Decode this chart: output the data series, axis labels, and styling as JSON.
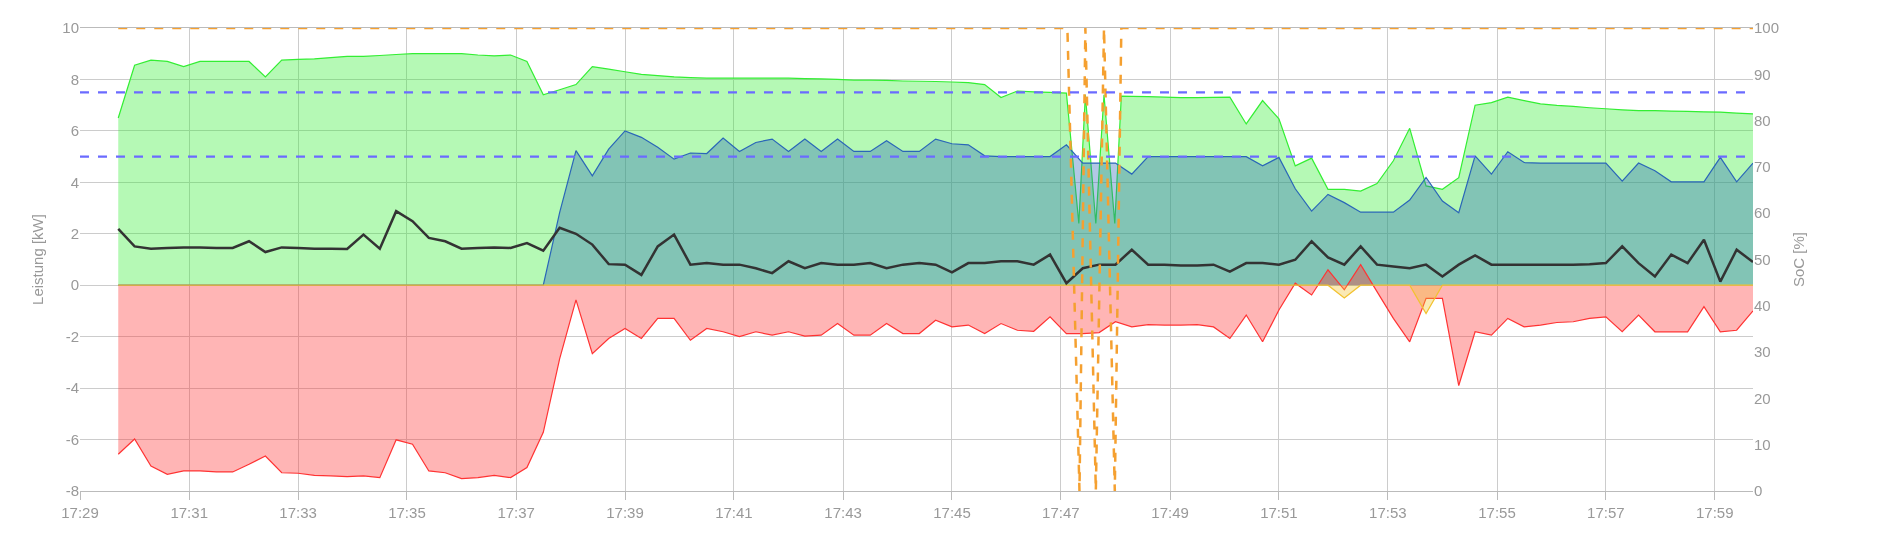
{
  "chart_data": {
    "type": "area",
    "ylabel": "Leistung [kW]",
    "y2label": "SoC [%]",
    "x": [
      17.495,
      17.5,
      17.505,
      17.51,
      17.515,
      17.52,
      17.525,
      17.53,
      17.535,
      17.54,
      17.545,
      17.55,
      17.555,
      17.56,
      17.565,
      17.57,
      17.575,
      17.58,
      17.585,
      17.59,
      17.595,
      17.6,
      17.605,
      17.61,
      17.615,
      17.62,
      17.625,
      17.63,
      17.635,
      17.64,
      17.645,
      17.65,
      17.655,
      17.66,
      17.665,
      17.67,
      17.675,
      17.68,
      17.685,
      17.69,
      17.695,
      17.7,
      17.705,
      17.71,
      17.715,
      17.72,
      17.725,
      17.73,
      17.735,
      17.74,
      17.745,
      17.75,
      17.755,
      17.76,
      17.765,
      17.77,
      17.775,
      17.78,
      17.785,
      17.79,
      17.795,
      17.8,
      17.805,
      17.81,
      17.815,
      17.82,
      17.825,
      17.83,
      17.835,
      17.84,
      17.845,
      17.85,
      17.855,
      17.86,
      17.865,
      17.87,
      17.875,
      17.88,
      17.885,
      17.89,
      17.895,
      17.9,
      17.905,
      17.91,
      17.915,
      17.92,
      17.925,
      17.93,
      17.935,
      17.94,
      17.945,
      17.95,
      17.955,
      17.96,
      17.965,
      17.97,
      17.975,
      17.98,
      17.985,
      17.99,
      17.995
    ],
    "series": [
      {
        "color": "#33ee33",
        "x": [
          17.495,
          17.5,
          17.505,
          17.51,
          17.515,
          17.52,
          17.525,
          17.53,
          17.535,
          17.54,
          17.545,
          17.55,
          17.555,
          17.56,
          17.565,
          17.57,
          17.575,
          17.58,
          17.585,
          17.59,
          17.595,
          17.6,
          17.605,
          17.61,
          17.615,
          17.62,
          17.625,
          17.63,
          17.635,
          17.64,
          17.645,
          17.65,
          17.655,
          17.66,
          17.665,
          17.67,
          17.675,
          17.68,
          17.685,
          17.69,
          17.695,
          17.7,
          17.705,
          17.71,
          17.715,
          17.72,
          17.725,
          17.73,
          17.735,
          17.74,
          17.745,
          17.75,
          17.755,
          17.76,
          17.765,
          17.77,
          17.775,
          17.78,
          17.785,
          17.7888,
          17.7908,
          17.794,
          17.7965,
          17.7998,
          17.8018,
          17.805,
          17.81,
          17.815,
          17.82,
          17.825,
          17.83,
          17.835,
          17.84,
          17.845,
          17.85,
          17.855,
          17.86,
          17.865,
          17.87,
          17.875,
          17.88,
          17.885,
          17.89,
          17.895,
          17.9,
          17.905,
          17.91,
          17.915,
          17.92,
          17.925,
          17.93,
          17.935,
          17.94,
          17.945,
          17.95,
          17.955,
          17.96,
          17.965,
          17.97,
          17.975,
          17.98,
          17.985,
          17.99,
          17.995
        ],
        "values": [
          6.5,
          8.55,
          8.75,
          8.7,
          8.5,
          8.7,
          8.7,
          8.7,
          8.7,
          8.1,
          8.75,
          8.78,
          8.8,
          8.85,
          8.9,
          8.9,
          8.93,
          8.97,
          9.0,
          9.0,
          9.0,
          9.0,
          8.95,
          8.92,
          8.95,
          8.7,
          7.4,
          7.6,
          7.8,
          8.5,
          8.4,
          8.3,
          8.2,
          8.15,
          8.1,
          8.07,
          8.05,
          8.05,
          8.05,
          8.05,
          8.05,
          8.05,
          8.03,
          8.02,
          8.0,
          7.97,
          7.97,
          7.96,
          7.94,
          7.93,
          7.92,
          7.9,
          7.88,
          7.8,
          7.3,
          7.55,
          7.52,
          7.5,
          7.47,
          2.4,
          7.4,
          2.4,
          7.4,
          2.4,
          7.35,
          7.34,
          7.33,
          7.31,
          7.29,
          7.29,
          7.3,
          7.31,
          6.27,
          7.18,
          6.47,
          4.64,
          4.94,
          3.73,
          3.73,
          3.66,
          3.95,
          4.84,
          6.1,
          3.86,
          3.73,
          4.18,
          7.0,
          7.1,
          7.31,
          7.18,
          7.05,
          6.99,
          6.95,
          6.9,
          6.86,
          6.82,
          6.79,
          6.79,
          6.77,
          6.76,
          6.74,
          6.73,
          6.69,
          6.66
        ]
      },
      {
        "color": "#2a66b8",
        "values": [
          0,
          0,
          0,
          0,
          0,
          0,
          0,
          0,
          0,
          0,
          0,
          0,
          0,
          0,
          0,
          0,
          0,
          0,
          0,
          0,
          0,
          0,
          0,
          0,
          0,
          0,
          0,
          2.82,
          5.23,
          4.25,
          5.29,
          6.0,
          5.75,
          5.36,
          4.9,
          5.14,
          5.12,
          5.72,
          5.2,
          5.55,
          5.68,
          5.2,
          5.68,
          5.2,
          5.68,
          5.2,
          5.2,
          5.62,
          5.2,
          5.2,
          5.68,
          5.5,
          5.46,
          5.03,
          5.0,
          5.0,
          5.0,
          5.0,
          5.46,
          4.75,
          4.75,
          4.75,
          4.32,
          5.0,
          5.0,
          5.0,
          5.0,
          5.0,
          5.0,
          5.0,
          4.64,
          4.97,
          3.75,
          2.88,
          3.53,
          3.21,
          2.84,
          2.84,
          2.84,
          3.31,
          4.19,
          3.27,
          2.82,
          5.03,
          4.32,
          5.19,
          4.77,
          4.75,
          4.75,
          4.75,
          4.75,
          4.75,
          4.05,
          4.75,
          4.45,
          4.02,
          4.02,
          4.02,
          4.97,
          4.02,
          4.75
        ]
      },
      {
        "color": "#ff3333",
        "values": [
          -6.57,
          -5.98,
          -7.03,
          -7.35,
          -7.22,
          -7.22,
          -7.26,
          -7.26,
          -6.96,
          -6.64,
          -7.29,
          -7.31,
          -7.39,
          -7.41,
          -7.44,
          -7.41,
          -7.48,
          -6.01,
          -6.18,
          -7.22,
          -7.29,
          -7.52,
          -7.48,
          -7.39,
          -7.48,
          -7.09,
          -5.72,
          -2.86,
          -0.57,
          -2.66,
          -2.07,
          -1.68,
          -2.07,
          -1.29,
          -1.29,
          -2.14,
          -1.68,
          -1.81,
          -2.0,
          -1.81,
          -1.94,
          -1.81,
          -1.98,
          -1.94,
          -1.49,
          -1.94,
          -1.94,
          -1.49,
          -1.88,
          -1.88,
          -1.36,
          -1.62,
          -1.55,
          -1.88,
          -1.49,
          -1.75,
          -1.79,
          -1.23,
          -1.88,
          -1.88,
          -1.84,
          -1.42,
          -1.62,
          -1.53,
          -1.55,
          -1.55,
          -1.53,
          -1.62,
          -2.07,
          -1.16,
          -2.2,
          -0.96,
          0.08,
          -0.38,
          0.6,
          -0.18,
          0.8,
          -0.25,
          -1.29,
          -2.2,
          -0.51,
          -0.51,
          -3.9,
          -1.81,
          -1.94,
          -1.29,
          -1.62,
          -1.55,
          -1.45,
          -1.42,
          -1.29,
          -1.23,
          -1.81,
          -1.16,
          -1.81,
          -1.81,
          -1.81,
          -0.83,
          -1.81,
          -1.75,
          -1.0
        ]
      },
      {
        "color": "#f2c230",
        "values": [
          0,
          0,
          0,
          0,
          0,
          0,
          0,
          0,
          0,
          0,
          0,
          0,
          0,
          0,
          0,
          0,
          0,
          0,
          0,
          0,
          0,
          0,
          0,
          0,
          0,
          0,
          0,
          0,
          0,
          0,
          0,
          0,
          0,
          0,
          0,
          0,
          0,
          0,
          0,
          0,
          0,
          0,
          0,
          0,
          0,
          0,
          0,
          0,
          0,
          0,
          0,
          0,
          0,
          0,
          0,
          0,
          0,
          0,
          0,
          0,
          0,
          0,
          0,
          0,
          0,
          0,
          0,
          0,
          0,
          0,
          0,
          0,
          0,
          0,
          0,
          -0.5,
          0,
          0,
          0,
          0,
          -1.1,
          0,
          0,
          0,
          0,
          0,
          0,
          0,
          0,
          0,
          0,
          0,
          0,
          0,
          0,
          0,
          0,
          0,
          0,
          0,
          0
        ]
      },
      {
        "type": "line",
        "color": "#333333",
        "values": [
          2.19,
          1.51,
          1.42,
          1.45,
          1.47,
          1.47,
          1.45,
          1.45,
          1.71,
          1.29,
          1.47,
          1.45,
          1.42,
          1.42,
          1.41,
          1.97,
          1.42,
          2.88,
          2.49,
          1.84,
          1.71,
          1.42,
          1.45,
          1.47,
          1.45,
          1.64,
          1.34,
          2.23,
          2.0,
          1.58,
          0.82,
          0.8,
          0.4,
          1.51,
          1.97,
          0.8,
          0.86,
          0.8,
          0.8,
          0.66,
          0.47,
          0.93,
          0.66,
          0.86,
          0.8,
          0.8,
          0.86,
          0.66,
          0.8,
          0.86,
          0.8,
          0.5,
          0.86,
          0.86,
          0.93,
          0.93,
          0.8,
          1.19,
          0.08,
          0.66,
          0.8,
          0.8,
          1.38,
          0.8,
          0.8,
          0.77,
          0.77,
          0.8,
          0.53,
          0.86,
          0.86,
          0.8,
          0.99,
          1.71,
          1.08,
          0.8,
          1.51,
          0.8,
          0.73,
          0.66,
          0.8,
          0.34,
          0.8,
          1.16,
          0.8,
          0.8,
          0.8,
          0.8,
          0.8,
          0.8,
          0.82,
          0.86,
          1.51,
          0.86,
          0.34,
          1.19,
          0.86,
          1.77,
          0.14,
          1.38,
          0.9
        ]
      },
      {
        "type": "line",
        "color": "#f5a030",
        "axis": "y2",
        "line_style": "dashed",
        "x": [
          17.495,
          17.7853,
          17.789,
          17.7908,
          17.794,
          17.7965,
          17.7998,
          17.8018,
          17.995
        ],
        "values": [
          100,
          100,
          0,
          100,
          0,
          100,
          0,
          100,
          100
        ]
      }
    ],
    "xlim": [
      17.4833,
      17.995
    ],
    "xticks": [
      {
        "value": 17.4833,
        "label": "17:29"
      },
      {
        "value": 17.5167,
        "label": "17:31"
      },
      {
        "value": 17.55,
        "label": "17:33"
      },
      {
        "value": 17.5833,
        "label": "17:35"
      },
      {
        "value": 17.6167,
        "label": "17:37"
      },
      {
        "value": 17.65,
        "label": "17:39"
      },
      {
        "value": 17.6833,
        "label": "17:41"
      },
      {
        "value": 17.7167,
        "label": "17:43"
      },
      {
        "value": 17.75,
        "label": "17:45"
      },
      {
        "value": 17.7833,
        "label": "17:47"
      },
      {
        "value": 17.8167,
        "label": "17:49"
      },
      {
        "value": 17.85,
        "label": "17:51"
      },
      {
        "value": 17.8833,
        "label": "17:53"
      },
      {
        "value": 17.9167,
        "label": "17:55"
      },
      {
        "value": 17.95,
        "label": "17:57"
      },
      {
        "value": 17.9833,
        "label": "17:59"
      }
    ],
    "ylim": [
      -8,
      10
    ],
    "yticks": [
      -8,
      -6,
      -4,
      -2,
      0,
      2,
      4,
      6,
      8,
      10
    ],
    "y2lim": [
      0,
      100
    ],
    "y2ticks": [
      0,
      10,
      20,
      30,
      40,
      50,
      60,
      70,
      80,
      90,
      100
    ],
    "ref_lines": [
      {
        "axis": "y",
        "value": 7.5,
        "color": "#6b6bff",
        "line_style": "dashed"
      },
      {
        "axis": "y",
        "value": 5,
        "color": "#6b6bff",
        "line_style": "dashed"
      }
    ],
    "grid": true
  }
}
